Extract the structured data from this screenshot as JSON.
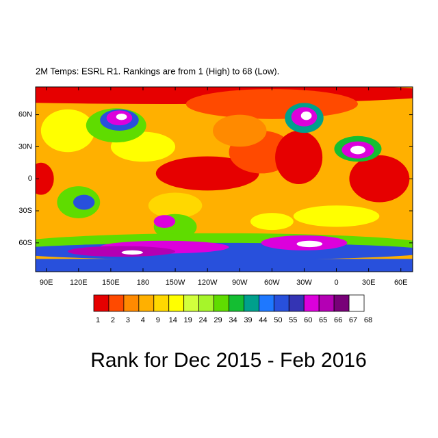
{
  "chart_data": {
    "type": "contour-map",
    "title": "2M Temps: ESRL R1. Rankings are from 1 (High) to 68 (Low).",
    "caption": "Rank for Dec 2015 - Feb 2016",
    "xlim": [
      80,
      431
    ],
    "ylim": [
      -87,
      86
    ],
    "xticks": [
      {
        "value": 90,
        "label": "90E"
      },
      {
        "value": 120,
        "label": "120E"
      },
      {
        "value": 150,
        "label": "150E"
      },
      180,
      {
        "value": 210,
        "label": "150W"
      },
      {
        "value": 240,
        "label": "120W"
      },
      {
        "value": 270,
        "label": "90W"
      },
      {
        "value": 300,
        "label": "60W"
      },
      {
        "value": 330,
        "label": "30W"
      },
      {
        "value": 360,
        "label": "0"
      },
      {
        "value": 390,
        "label": "30E"
      },
      {
        "value": 420,
        "label": "60E"
      }
    ],
    "yticks": [
      {
        "value": 60,
        "label": "60N"
      },
      {
        "value": 30,
        "label": "30N"
      },
      0,
      {
        "value": -30,
        "label": "30S"
      },
      {
        "value": -60,
        "label": "60S"
      }
    ],
    "colorbar": {
      "levels": [
        1,
        2,
        3,
        4,
        9,
        14,
        19,
        24,
        29,
        34,
        39,
        44,
        50,
        55,
        60,
        65,
        66,
        67,
        68
      ],
      "colors": [
        "#e60000",
        "#ff4a00",
        "#ff8a00",
        "#ffb000",
        "#ffd800",
        "#ffff00",
        "#d2ff3c",
        "#a6f52a",
        "#5fdc00",
        "#14be32",
        "#00a08c",
        "#1e78ff",
        "#2850dc",
        "#3434b4",
        "#dc00dc",
        "#b400b4",
        "#780078",
        "#ffffff"
      ]
    }
  }
}
